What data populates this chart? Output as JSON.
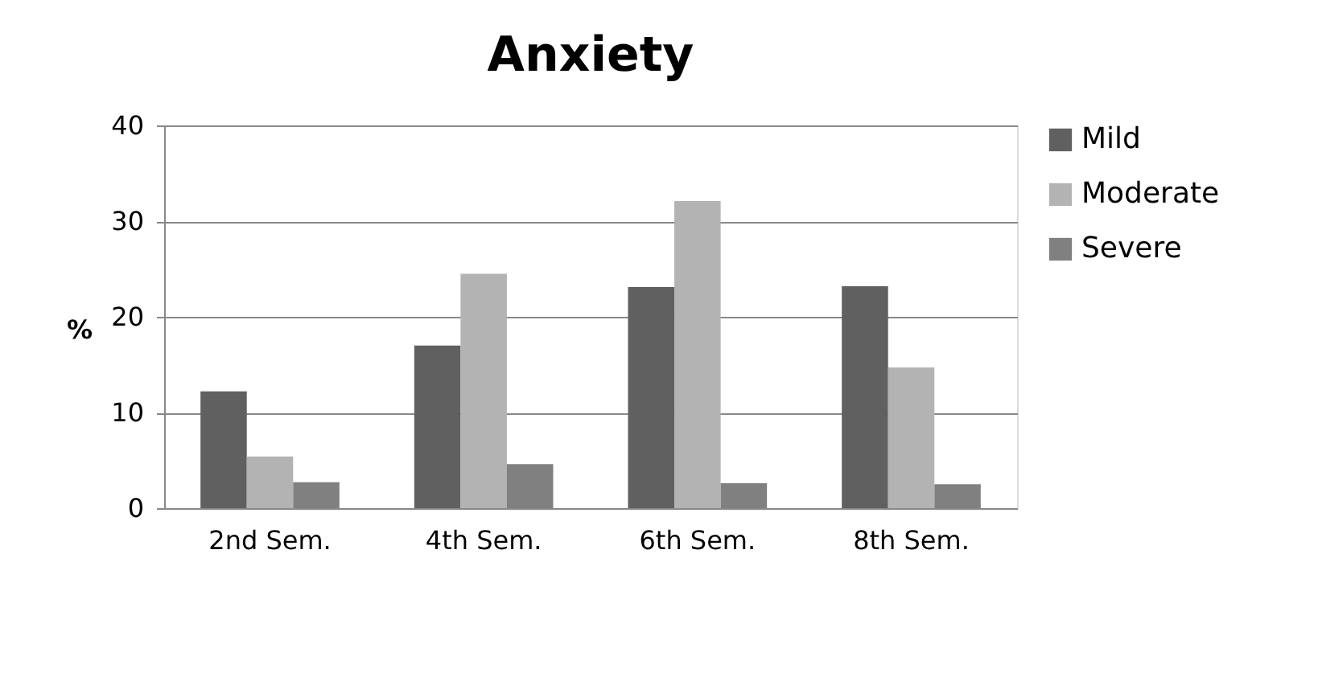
{
  "chart_data": {
    "type": "bar",
    "title": "Anxiety",
    "ylabel": "%",
    "categories": [
      "2nd Sem.",
      "4th Sem.",
      "6th Sem.",
      "8th Sem."
    ],
    "series": [
      {
        "name": "Mild",
        "color": "#606060",
        "values": [
          12.2,
          17.0,
          23.1,
          23.2
        ]
      },
      {
        "name": "Moderate",
        "color": "#b3b3b3",
        "values": [
          5.4,
          24.5,
          32.1,
          14.7
        ]
      },
      {
        "name": "Severe",
        "color": "#808080",
        "values": [
          2.7,
          4.6,
          2.6,
          2.5
        ]
      }
    ],
    "ylim": [
      0,
      40
    ],
    "yticks": [
      0,
      10,
      20,
      30,
      40
    ],
    "grid": "y",
    "legend": "right"
  }
}
